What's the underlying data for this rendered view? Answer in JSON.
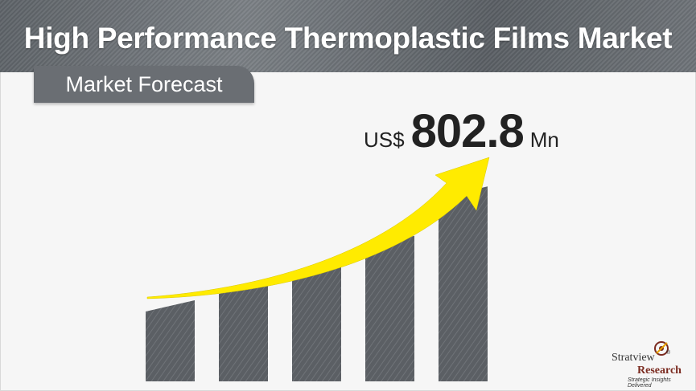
{
  "header": {
    "title": "High Performance Thermoplastic Films Market",
    "subtitle": "Market Forecast"
  },
  "forecast": {
    "currency": "US$",
    "value": "802.8",
    "unit": "Mn"
  },
  "chart_data": {
    "type": "bar",
    "categories": [
      "",
      "",
      "",
      "",
      ""
    ],
    "values": [
      97,
      118,
      140,
      174,
      233
    ],
    "ylim": [
      0,
      240
    ],
    "grid": false,
    "trend_arrow": true,
    "bar_color": "#5b5f64",
    "arrow_color": "#ffeb00"
  },
  "logo": {
    "name_part1": "Stratview",
    "name_part2": "Research",
    "registered": "®",
    "tagline": "Strategic Insights Delivered"
  },
  "colors": {
    "header_band": "#6e7378",
    "subtitle_box": "#6a6e73",
    "accent_yellow": "#ffeb00",
    "logo_red": "#7a2a1f"
  }
}
